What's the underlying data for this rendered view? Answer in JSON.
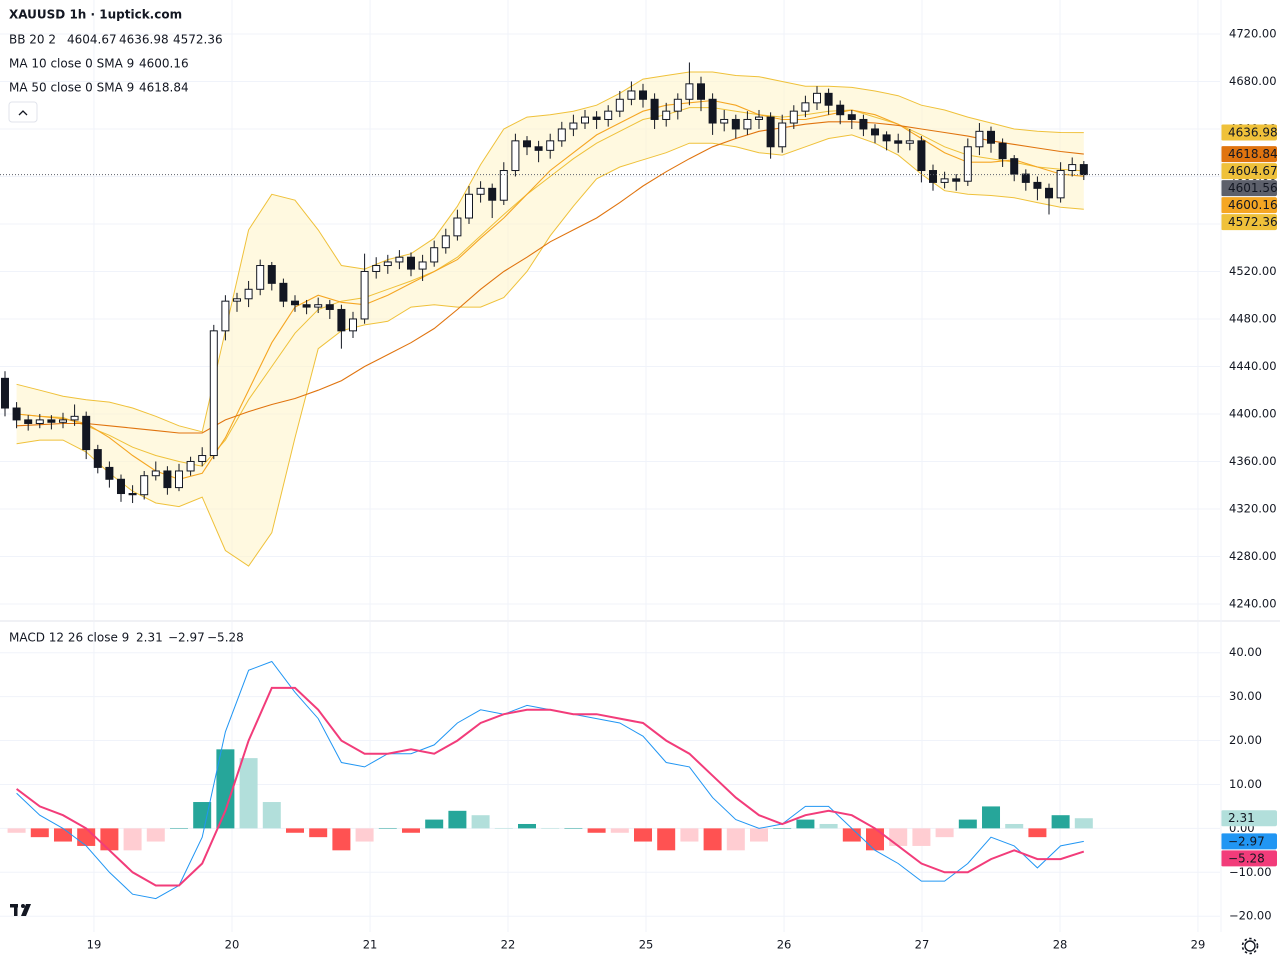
{
  "chart_data": [
    {
      "type": "candlestick",
      "title": "XAUUSD 1h · 1uptick.com",
      "x": [
        0,
        1,
        2,
        3,
        4,
        5,
        6,
        7,
        8,
        9,
        10,
        11,
        12,
        13,
        14,
        15,
        16,
        17,
        18,
        19,
        20,
        21,
        22,
        23,
        24,
        25,
        26,
        27,
        28,
        29,
        30,
        31,
        32,
        33,
        34,
        35,
        36,
        37,
        38,
        39,
        40,
        41,
        42,
        43,
        44,
        45,
        46,
        47,
        48,
        49,
        50,
        51,
        52,
        53,
        54,
        55,
        56,
        57,
        58,
        59,
        60,
        61,
        62,
        63,
        64,
        65,
        66,
        67,
        68,
        69,
        70,
        71,
        72,
        73,
        74,
        75,
        76,
        77,
        78,
        79,
        80,
        81,
        82,
        83,
        84,
        85,
        86,
        87,
        88,
        89,
        90,
        91,
        92,
        93
      ],
      "open": [
        4430,
        4405,
        4395,
        4392,
        4395,
        4393,
        4395,
        4398,
        4370,
        4355,
        4345,
        4333,
        4332,
        4348,
        4352,
        4338,
        4352,
        4360,
        4365,
        4470,
        4495,
        4497,
        4505,
        4525,
        4510,
        4495,
        4492,
        4490,
        4492,
        4488,
        4470,
        4480,
        4520,
        4525,
        4528,
        4532,
        4522,
        4528,
        4540,
        4550,
        4565,
        4585,
        4590,
        4580,
        4605,
        4630,
        4625,
        4622,
        4630,
        4640,
        4645,
        4650,
        4648,
        4655,
        4665,
        4672,
        4665,
        4648,
        4655,
        4665,
        4678,
        4665,
        4645,
        4648,
        4640,
        4648,
        4650,
        4625,
        4645,
        4655,
        4662,
        4670,
        4660,
        4652,
        4648,
        4640,
        4635,
        4630,
        4628,
        4630,
        4605,
        4595,
        4598,
        4596,
        4625,
        4638,
        4628,
        4615,
        4602,
        4595,
        4590,
        4582,
        4605,
        4610
      ],
      "high": [
        4436,
        4410,
        4399,
        4400,
        4399,
        4401,
        4408,
        4402,
        4374,
        4360,
        4349,
        4340,
        4352,
        4360,
        4356,
        4358,
        4364,
        4372,
        4475,
        4500,
        4502,
        4512,
        4530,
        4528,
        4514,
        4500,
        4496,
        4498,
        4496,
        4492,
        4486,
        4535,
        4532,
        4534,
        4538,
        4536,
        4534,
        4546,
        4556,
        4572,
        4592,
        4596,
        4594,
        4612,
        4636,
        4634,
        4630,
        4636,
        4646,
        4652,
        4656,
        4655,
        4660,
        4672,
        4680,
        4678,
        4670,
        4662,
        4670,
        4696,
        4684,
        4670,
        4656,
        4652,
        4655,
        4656,
        4654,
        4652,
        4660,
        4668,
        4676,
        4674,
        4664,
        4656,
        4652,
        4644,
        4638,
        4636,
        4640,
        4634,
        4610,
        4604,
        4602,
        4632,
        4645,
        4642,
        4632,
        4618,
        4606,
        4600,
        4594,
        4612,
        4616,
        4613
      ],
      "low": [
        4398,
        4388,
        4386,
        4388,
        4387,
        4388,
        4390,
        4362,
        4350,
        4338,
        4326,
        4325,
        4328,
        4344,
        4332,
        4335,
        4348,
        4356,
        4362,
        4462,
        4486,
        4490,
        4500,
        4504,
        4490,
        4486,
        4484,
        4485,
        4480,
        4455,
        4464,
        4476,
        4514,
        4518,
        4522,
        4516,
        4512,
        4524,
        4535,
        4546,
        4560,
        4578,
        4565,
        4576,
        4600,
        4618,
        4612,
        4615,
        4625,
        4634,
        4640,
        4640,
        4642,
        4650,
        4660,
        4658,
        4640,
        4642,
        4648,
        4660,
        4655,
        4635,
        4638,
        4632,
        4635,
        4640,
        4615,
        4620,
        4640,
        4650,
        4656,
        4652,
        4644,
        4640,
        4634,
        4628,
        4622,
        4620,
        4622,
        4595,
        4588,
        4590,
        4588,
        4592,
        4618,
        4620,
        4608,
        4596,
        4588,
        4580,
        4568,
        4578,
        4600,
        4597
      ],
      "close": [
        4405,
        4395,
        4392,
        4395,
        4393,
        4395,
        4398,
        4370,
        4355,
        4345,
        4333,
        4332,
        4348,
        4352,
        4338,
        4352,
        4360,
        4365,
        4470,
        4495,
        4497,
        4505,
        4525,
        4510,
        4495,
        4492,
        4490,
        4492,
        4488,
        4470,
        4480,
        4520,
        4525,
        4528,
        4532,
        4522,
        4528,
        4540,
        4550,
        4565,
        4585,
        4590,
        4580,
        4605,
        4630,
        4625,
        4622,
        4630,
        4640,
        4645,
        4650,
        4648,
        4655,
        4665,
        4672,
        4665,
        4648,
        4655,
        4665,
        4678,
        4665,
        4645,
        4648,
        4640,
        4648,
        4650,
        4625,
        4645,
        4655,
        4662,
        4670,
        4660,
        4652,
        4648,
        4640,
        4635,
        4630,
        4628,
        4630,
        4605,
        4595,
        4598,
        4596,
        4625,
        4638,
        4628,
        4615,
        4602,
        4595,
        4590,
        4582,
        4605,
        4610,
        4601.56
      ],
      "up_color": "#ffffff",
      "down_color": "#131722",
      "xlim": [
        -0.43,
        104.74
      ],
      "xticks": [
        7.67,
        19.57,
        31.47,
        43.36,
        55.26,
        67.16,
        79.05,
        90.95,
        102.84
      ],
      "ylim": [
        4226.5,
        4748.6
      ],
      "yticks": [
        {
          "value": 4240,
          "label": "4240.00"
        },
        {
          "value": 4280,
          "label": "4280.00"
        },
        {
          "value": 4320,
          "label": "4320.00"
        },
        {
          "value": 4360,
          "label": "4360.00"
        },
        {
          "value": 4400,
          "label": "4400.00"
        },
        {
          "value": 4440,
          "label": "4440.00"
        },
        {
          "value": 4480,
          "label": "4480.00"
        },
        {
          "value": 4520,
          "label": "4520.00"
        },
        {
          "value": 4560,
          "label": "4560.00"
        },
        {
          "value": 4600,
          "label": "4600.00"
        },
        {
          "value": 4640,
          "label": "4640.00"
        },
        {
          "value": 4680,
          "label": "4680.00"
        },
        {
          "value": 4720,
          "label": "4720.00"
        }
      ],
      "grid": true,
      "overlays": [
        {
          "type": "band",
          "name": "BB 20 2",
          "color": "#efc13a",
          "fill": "#fff5cc",
          "x": [
            1,
            3,
            5,
            7,
            9,
            11,
            13,
            15,
            17,
            19,
            21,
            23,
            25,
            27,
            29,
            31,
            33,
            35,
            37,
            39,
            41,
            43,
            45,
            47,
            49,
            51,
            53,
            55,
            57,
            59,
            61,
            63,
            65,
            67,
            69,
            71,
            73,
            75,
            77,
            79,
            81,
            83,
            85,
            87,
            89,
            91,
            93
          ],
          "basis": [
            4400,
            4398,
            4397,
            4390,
            4382,
            4372,
            4365,
            4360,
            4356,
            4378,
            4412,
            4440,
            4468,
            4488,
            4495,
            4498,
            4505,
            4512,
            4520,
            4532,
            4550,
            4568,
            4585,
            4600,
            4615,
            4628,
            4638,
            4648,
            4652,
            4658,
            4658,
            4655,
            4652,
            4650,
            4652,
            4655,
            4656,
            4650,
            4644,
            4635,
            4625,
            4618,
            4615,
            4612,
            4608,
            4606,
            4604.67
          ],
          "upper": [
            4425,
            4420,
            4415,
            4412,
            4410,
            4405,
            4398,
            4390,
            4385,
            4470,
            4555,
            4585,
            4580,
            4555,
            4525,
            4522,
            4530,
            4535,
            4548,
            4575,
            4610,
            4640,
            4650,
            4652,
            4655,
            4660,
            4670,
            4682,
            4685,
            4688,
            4688,
            4685,
            4684,
            4680,
            4676,
            4676,
            4675,
            4672,
            4668,
            4660,
            4656,
            4650,
            4645,
            4640,
            4638,
            4637,
            4636.98
          ],
          "lower": [
            4375,
            4378,
            4378,
            4368,
            4350,
            4335,
            4325,
            4322,
            4330,
            4285,
            4272,
            4300,
            4380,
            4455,
            4470,
            4475,
            4478,
            4490,
            4492,
            4490,
            4490,
            4498,
            4520,
            4550,
            4575,
            4598,
            4608,
            4614,
            4620,
            4628,
            4628,
            4625,
            4620,
            4618,
            4625,
            4632,
            4635,
            4628,
            4618,
            4602,
            4588,
            4585,
            4584,
            4582,
            4578,
            4574,
            4572.36
          ]
        },
        {
          "type": "line",
          "name": "MA 10 close 0 SMA 9",
          "color": "#f5a623",
          "x": [
            1,
            3,
            5,
            7,
            9,
            11,
            13,
            15,
            17,
            19,
            21,
            23,
            25,
            27,
            29,
            31,
            33,
            35,
            37,
            39,
            41,
            43,
            45,
            47,
            49,
            51,
            53,
            55,
            57,
            59,
            61,
            63,
            65,
            67,
            69,
            71,
            73,
            75,
            77,
            79,
            81,
            83,
            85,
            87,
            89,
            91,
            93
          ],
          "values": [
            4400,
            4398,
            4396,
            4392,
            4380,
            4365,
            4352,
            4345,
            4350,
            4380,
            4420,
            4460,
            4490,
            4500,
            4494,
            4492,
            4500,
            4510,
            4520,
            4530,
            4548,
            4565,
            4585,
            4605,
            4620,
            4635,
            4645,
            4655,
            4660,
            4662,
            4664,
            4660,
            4652,
            4648,
            4648,
            4652,
            4656,
            4652,
            4644,
            4632,
            4620,
            4612,
            4612,
            4614,
            4608,
            4602,
            4600.16
          ]
        },
        {
          "type": "line",
          "name": "MA 50 close 0 SMA 9",
          "color": "#e0740f",
          "x": [
            1,
            3,
            5,
            7,
            9,
            11,
            13,
            15,
            17,
            19,
            21,
            23,
            25,
            27,
            29,
            31,
            33,
            35,
            37,
            39,
            41,
            43,
            45,
            47,
            49,
            51,
            53,
            55,
            57,
            59,
            61,
            63,
            65,
            67,
            69,
            71,
            73,
            75,
            77,
            79,
            81,
            83,
            85,
            87,
            89,
            91,
            93
          ],
          "values": [
            4390,
            4391,
            4392,
            4392,
            4390,
            4388,
            4386,
            4384,
            4384,
            4395,
            4402,
            4408,
            4413,
            4420,
            4428,
            4440,
            4450,
            4460,
            4472,
            4488,
            4505,
            4520,
            4532,
            4545,
            4555,
            4565,
            4578,
            4592,
            4604,
            4615,
            4625,
            4632,
            4638,
            4641,
            4644,
            4646,
            4646,
            4645,
            4643,
            4640,
            4637,
            4634,
            4630,
            4627,
            4624,
            4621,
            4618.84
          ]
        }
      ]
    },
    {
      "type": "macd",
      "title": "MACD 12 26 close 9",
      "x": [
        1,
        3,
        5,
        7,
        9,
        11,
        13,
        15,
        17,
        19,
        21,
        23,
        25,
        27,
        29,
        31,
        33,
        35,
        37,
        39,
        41,
        43,
        45,
        47,
        49,
        51,
        53,
        55,
        57,
        59,
        61,
        63,
        65,
        67,
        69,
        71,
        73,
        75,
        77,
        79,
        81,
        83,
        85,
        87,
        89,
        91,
        93
      ],
      "histogram": [
        -1,
        -2,
        -3,
        -4,
        -5,
        -5,
        -3,
        0,
        6,
        18,
        16,
        6,
        -1,
        -2,
        -5,
        -3,
        0,
        -1,
        2,
        4,
        3,
        0,
        1,
        0,
        0,
        -1,
        -1,
        -3,
        -5,
        -3,
        -5,
        -5,
        -3,
        0,
        2,
        1,
        -3,
        -5,
        -4,
        -4,
        -2,
        2,
        5,
        1,
        -2,
        3,
        2.31
      ],
      "histogram_colors": [
        "#26a69a",
        "#b2dfdb",
        "#ff5252",
        "#ffcdd2"
      ],
      "series": [
        {
          "color": "#2196f3",
          "values": [
            8,
            3,
            0,
            -4,
            -10,
            -15,
            -16,
            -13,
            -2,
            22,
            36,
            38,
            31,
            25,
            15,
            14,
            17,
            17,
            19,
            24,
            27,
            26,
            28,
            27,
            26,
            25,
            24,
            21,
            15,
            14,
            7,
            2,
            0,
            1,
            5,
            5,
            0,
            -5,
            -8,
            -12,
            -12,
            -8,
            -2,
            -4,
            -9,
            -4,
            -2.97
          ],
          "value_labels": {
            "46": "−2.97"
          }
        },
        {
          "color": "#f23c7a",
          "values": [
            9,
            5,
            3,
            0,
            -5,
            -10,
            -13,
            -13,
            -8,
            4,
            20,
            32,
            32,
            27,
            20,
            17,
            17,
            18,
            17,
            20,
            24,
            26,
            27,
            27,
            26,
            26,
            25,
            24,
            20,
            17,
            12,
            7,
            3,
            1,
            3,
            4,
            3,
            0,
            -4,
            -8,
            -10,
            -10,
            -7,
            -5,
            -7,
            -7,
            -5.28
          ],
          "value_labels": {
            "46": "−5.28"
          }
        }
      ],
      "xlim": [
        -0.43,
        104.74
      ],
      "xticks": [
        {
          "value": 7.67,
          "label": "19"
        },
        {
          "value": 19.57,
          "label": "20"
        },
        {
          "value": 31.47,
          "label": "21"
        },
        {
          "value": 43.36,
          "label": "22"
        },
        {
          "value": 55.26,
          "label": "25"
        },
        {
          "value": 67.16,
          "label": "26"
        },
        {
          "value": 79.05,
          "label": "27"
        },
        {
          "value": 90.95,
          "label": "28"
        },
        {
          "value": 102.84,
          "label": "29"
        }
      ],
      "ylim": [
        -23.6,
        47
      ],
      "yticks": [
        {
          "value": -20,
          "label": "−20.00"
        },
        {
          "value": -10,
          "label": "−10.00"
        },
        {
          "value": 0,
          "label": "0.00"
        },
        {
          "value": 10,
          "label": "10.00"
        },
        {
          "value": 20,
          "label": "20.00"
        },
        {
          "value": 30,
          "label": "30.00"
        },
        {
          "value": 40,
          "label": "40.00"
        }
      ],
      "grid": true
    }
  ]
}
